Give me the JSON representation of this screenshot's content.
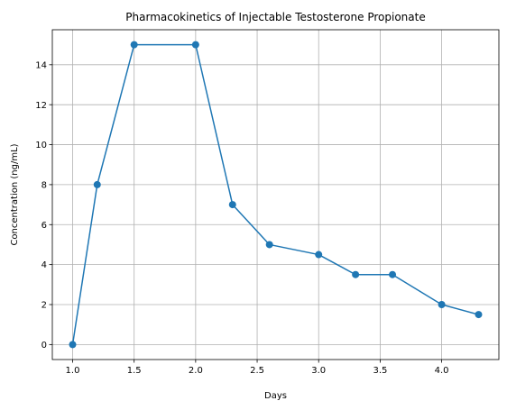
{
  "chart_data": {
    "type": "line",
    "title": "Pharmacokinetics of Injectable Testosterone Propionate",
    "xlabel": "Days",
    "ylabel": "Concentration (ng/mL)",
    "xlim": [
      0.835,
      4.465
    ],
    "ylim": [
      -0.75,
      15.75
    ],
    "xticks": [
      1.0,
      1.5,
      2.0,
      2.5,
      3.0,
      3.5,
      4.0
    ],
    "xtick_labels": [
      "1.0",
      "1.5",
      "2.0",
      "2.5",
      "3.0",
      "3.5",
      "4.0"
    ],
    "yticks": [
      0,
      2,
      4,
      6,
      8,
      10,
      12,
      14
    ],
    "ytick_labels": [
      "0",
      "2",
      "4",
      "6",
      "8",
      "10",
      "12",
      "14"
    ],
    "grid": true,
    "series": [
      {
        "color": "#1f77b4",
        "marker": "circle",
        "x": [
          1.0,
          1.2,
          1.5,
          2.0,
          2.3,
          2.6,
          3.0,
          3.3,
          3.6,
          4.0,
          4.3
        ],
        "y": [
          0,
          8,
          15,
          15,
          7,
          5,
          4.5,
          3.5,
          3.5,
          2,
          1.5
        ]
      }
    ]
  }
}
